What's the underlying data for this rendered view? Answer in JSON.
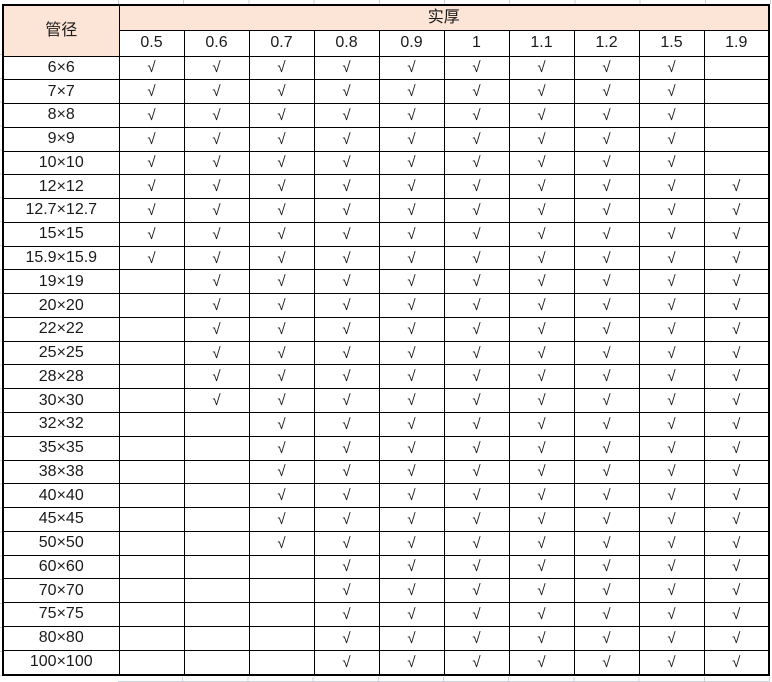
{
  "table": {
    "corner_header": "管径",
    "group_header": "实厚",
    "thickness_columns": [
      "0.5",
      "0.6",
      "0.7",
      "0.8",
      "0.9",
      "1",
      "1.1",
      "1.2",
      "1.5",
      "1.9"
    ],
    "check_symbol": "√",
    "rows": [
      {
        "diameter": "6×6",
        "available_thicknesses": [
          "0.5",
          "0.6",
          "0.7",
          "0.8",
          "0.9",
          "1",
          "1.1",
          "1.2",
          "1.5"
        ]
      },
      {
        "diameter": "7×7",
        "available_thicknesses": [
          "0.5",
          "0.6",
          "0.7",
          "0.8",
          "0.9",
          "1",
          "1.1",
          "1.2",
          "1.5"
        ]
      },
      {
        "diameter": "8×8",
        "available_thicknesses": [
          "0.5",
          "0.6",
          "0.7",
          "0.8",
          "0.9",
          "1",
          "1.1",
          "1.2",
          "1.5"
        ]
      },
      {
        "diameter": "9×9",
        "available_thicknesses": [
          "0.5",
          "0.6",
          "0.7",
          "0.8",
          "0.9",
          "1",
          "1.1",
          "1.2",
          "1.5"
        ]
      },
      {
        "diameter": "10×10",
        "available_thicknesses": [
          "0.5",
          "0.6",
          "0.7",
          "0.8",
          "0.9",
          "1",
          "1.1",
          "1.2",
          "1.5"
        ]
      },
      {
        "diameter": "12×12",
        "available_thicknesses": [
          "0.5",
          "0.6",
          "0.7",
          "0.8",
          "0.9",
          "1",
          "1.1",
          "1.2",
          "1.5",
          "1.9"
        ]
      },
      {
        "diameter": "12.7×12.7",
        "available_thicknesses": [
          "0.5",
          "0.6",
          "0.7",
          "0.8",
          "0.9",
          "1",
          "1.1",
          "1.2",
          "1.5",
          "1.9"
        ]
      },
      {
        "diameter": "15×15",
        "available_thicknesses": [
          "0.5",
          "0.6",
          "0.7",
          "0.8",
          "0.9",
          "1",
          "1.1",
          "1.2",
          "1.5",
          "1.9"
        ]
      },
      {
        "diameter": "15.9×15.9",
        "available_thicknesses": [
          "0.5",
          "0.6",
          "0.7",
          "0.8",
          "0.9",
          "1",
          "1.1",
          "1.2",
          "1.5",
          "1.9"
        ]
      },
      {
        "diameter": "19×19",
        "available_thicknesses": [
          "0.6",
          "0.7",
          "0.8",
          "0.9",
          "1",
          "1.1",
          "1.2",
          "1.5",
          "1.9"
        ]
      },
      {
        "diameter": "20×20",
        "available_thicknesses": [
          "0.6",
          "0.7",
          "0.8",
          "0.9",
          "1",
          "1.1",
          "1.2",
          "1.5",
          "1.9"
        ]
      },
      {
        "diameter": "22×22",
        "available_thicknesses": [
          "0.6",
          "0.7",
          "0.8",
          "0.9",
          "1",
          "1.1",
          "1.2",
          "1.5",
          "1.9"
        ]
      },
      {
        "diameter": "25×25",
        "available_thicknesses": [
          "0.6",
          "0.7",
          "0.8",
          "0.9",
          "1",
          "1.1",
          "1.2",
          "1.5",
          "1.9"
        ]
      },
      {
        "diameter": "28×28",
        "available_thicknesses": [
          "0.6",
          "0.7",
          "0.8",
          "0.9",
          "1",
          "1.1",
          "1.2",
          "1.5",
          "1.9"
        ]
      },
      {
        "diameter": "30×30",
        "available_thicknesses": [
          "0.6",
          "0.7",
          "0.8",
          "0.9",
          "1",
          "1.1",
          "1.2",
          "1.5",
          "1.9"
        ]
      },
      {
        "diameter": "32×32",
        "available_thicknesses": [
          "0.7",
          "0.8",
          "0.9",
          "1",
          "1.1",
          "1.2",
          "1.5",
          "1.9"
        ]
      },
      {
        "diameter": "35×35",
        "available_thicknesses": [
          "0.7",
          "0.8",
          "0.9",
          "1",
          "1.1",
          "1.2",
          "1.5",
          "1.9"
        ]
      },
      {
        "diameter": "38×38",
        "available_thicknesses": [
          "0.7",
          "0.8",
          "0.9",
          "1",
          "1.1",
          "1.2",
          "1.5",
          "1.9"
        ]
      },
      {
        "diameter": "40×40",
        "available_thicknesses": [
          "0.7",
          "0.8",
          "0.9",
          "1",
          "1.1",
          "1.2",
          "1.5",
          "1.9"
        ]
      },
      {
        "diameter": "45×45",
        "available_thicknesses": [
          "0.7",
          "0.8",
          "0.9",
          "1",
          "1.1",
          "1.2",
          "1.5",
          "1.9"
        ]
      },
      {
        "diameter": "50×50",
        "available_thicknesses": [
          "0.7",
          "0.8",
          "0.9",
          "1",
          "1.1",
          "1.2",
          "1.5",
          "1.9"
        ]
      },
      {
        "diameter": "60×60",
        "available_thicknesses": [
          "0.8",
          "0.9",
          "1",
          "1.1",
          "1.2",
          "1.5",
          "1.9"
        ]
      },
      {
        "diameter": "70×70",
        "available_thicknesses": [
          "0.8",
          "0.9",
          "1",
          "1.1",
          "1.2",
          "1.5",
          "1.9"
        ]
      },
      {
        "diameter": "75×75",
        "available_thicknesses": [
          "0.8",
          "0.9",
          "1",
          "1.1",
          "1.2",
          "1.5",
          "1.9"
        ]
      },
      {
        "diameter": "80×80",
        "available_thicknesses": [
          "0.8",
          "0.9",
          "1",
          "1.1",
          "1.2",
          "1.5",
          "1.9"
        ]
      },
      {
        "diameter": "100×100",
        "available_thicknesses": [
          "0.8",
          "0.9",
          "1",
          "1.1",
          "1.2",
          "1.5",
          "1.9"
        ]
      }
    ],
    "colors": {
      "header_fill": "#fce4d6",
      "border": "#000000",
      "text": "#1a1a1a",
      "outer_gridline": "#c9d1dc"
    }
  }
}
